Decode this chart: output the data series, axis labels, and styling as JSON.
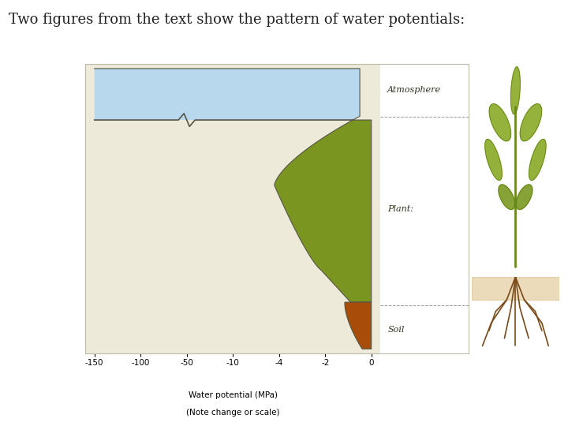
{
  "title": "Two figures from the text show the pattern of water potentials:",
  "title_fontsize": 13,
  "title_color": "#222222",
  "background_color": "#ffffff",
  "chart_bg": "#edeada",
  "right_panel_bg": "#edeada",
  "atmosphere_color": "#b8d8ed",
  "plant_color": "#7a9520",
  "soil_color": "#a84c0a",
  "xlabel1": "Water potential (MPa)",
  "xlabel2": "(Note change or scale)",
  "xtick_labels": [
    "-150",
    "-100",
    "-50",
    "-10",
    "-4",
    "-2",
    "0"
  ],
  "atmosphere_label": "Atmosphere",
  "plant_label": "Plant:",
  "soil_label": "Soil",
  "dashed_color": "#999999",
  "outline_color": "#555544",
  "label_fontsize": 8,
  "axis_fontsize": 7.5
}
